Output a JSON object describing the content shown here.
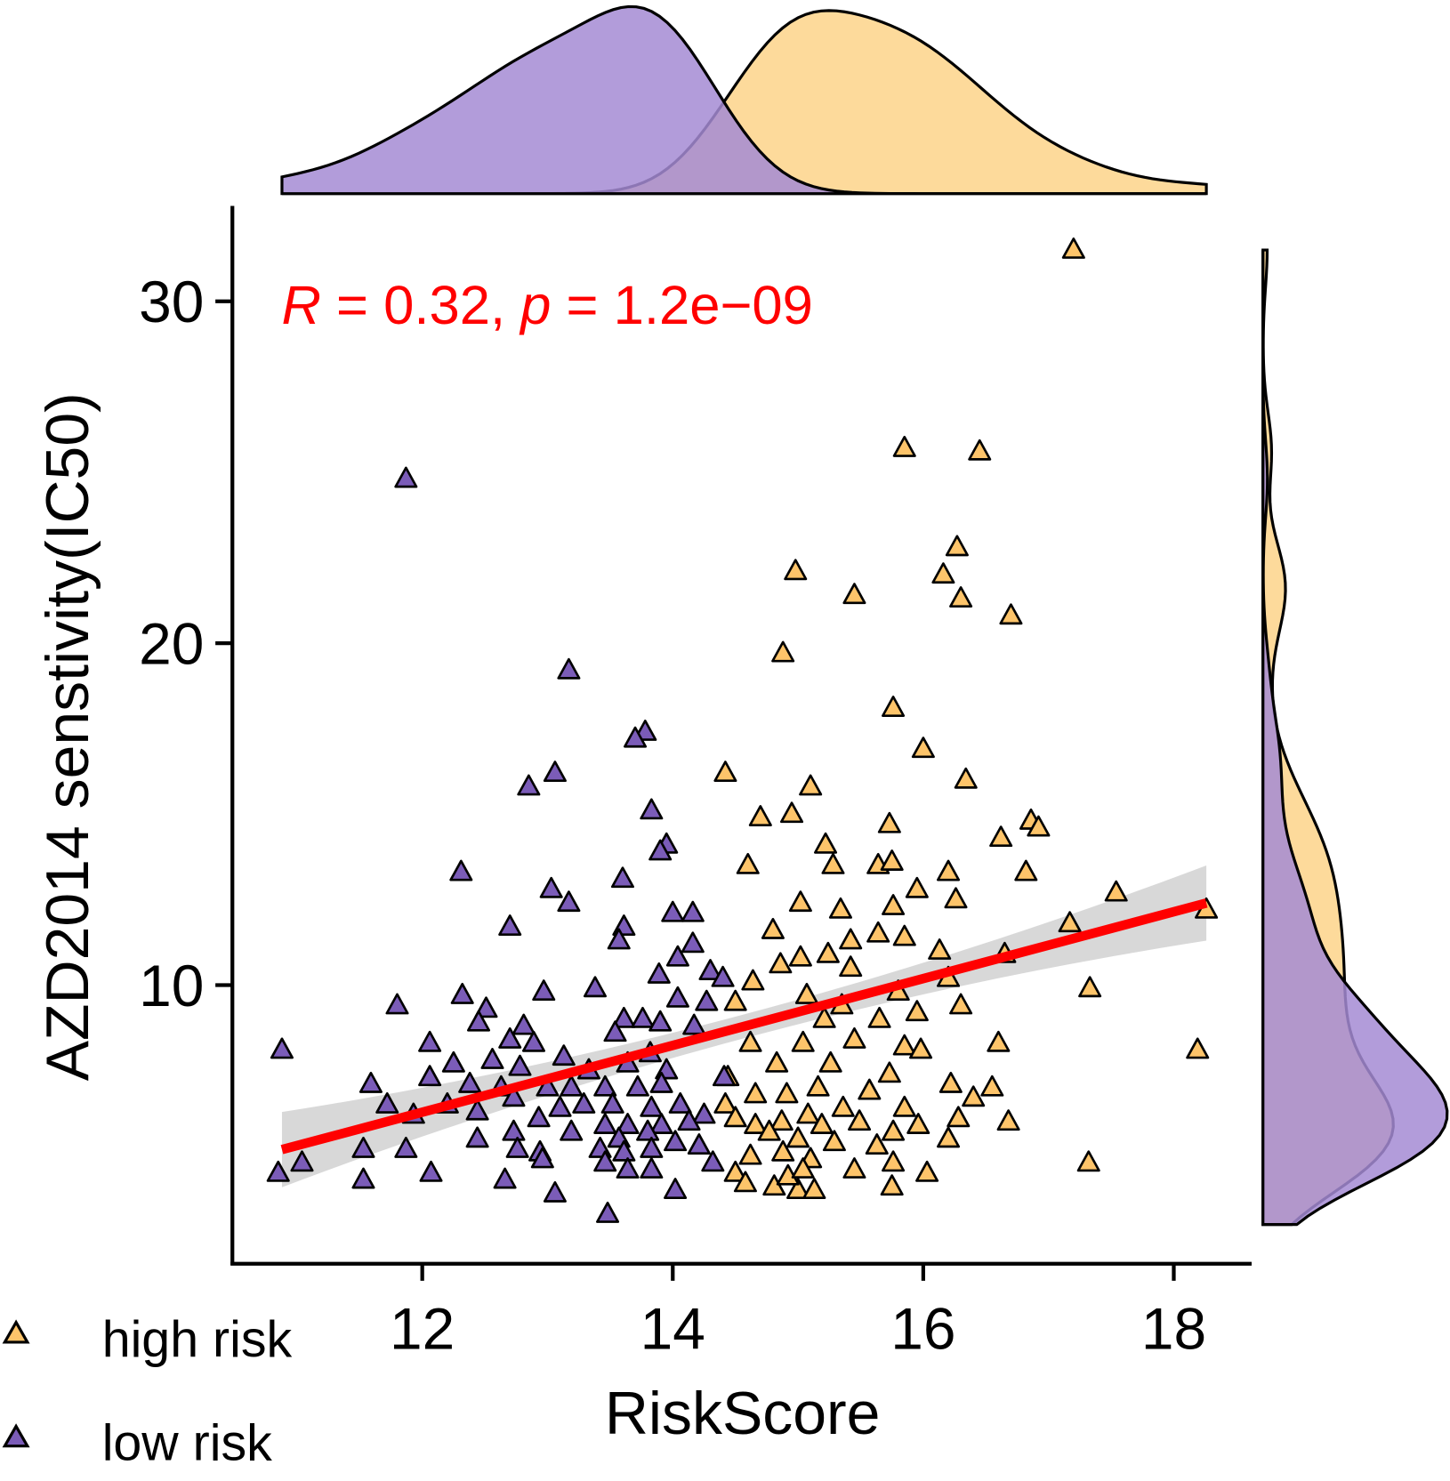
{
  "chart_data": {
    "type": "scatter",
    "title": "",
    "xlabel": "RiskScore",
    "ylabel": "AZD2014 senstivity(IC50)",
    "xlim": [
      10.6,
      18.65
    ],
    "ylim": [
      2.2,
      32.8
    ],
    "xticks": [
      12,
      14,
      16,
      18
    ],
    "yticks": [
      10,
      20,
      30
    ],
    "annotation": {
      "R_label": "R",
      "R_text": " = 0.32, ",
      "p_label": "p",
      "p_text": " = 1.2e−09",
      "color": "#FF0000"
    },
    "regression": {
      "slope": 0.977,
      "intercept": -5.44,
      "x_range": [
        10.88,
        18.26
      ],
      "ci_halfwidth_ends": 1.1,
      "ci_halfwidth_mid": 0.35,
      "color": "#FF0000",
      "band_color": "#BEBEBE"
    },
    "legend": {
      "placement": "bottom-left",
      "items": [
        {
          "name": "high risk",
          "color": "#FDC46A"
        },
        {
          "name": "low risk",
          "color": "#7B5CB8"
        }
      ]
    },
    "density_colors": {
      "high risk": "#FDD38A",
      "low risk": "#A58BD3"
    },
    "series": [
      {
        "name": "high risk",
        "color": "#FDC46A",
        "points": [
          [
            17.2,
            31.5
          ],
          [
            15.85,
            25.7
          ],
          [
            16.45,
            25.6
          ],
          [
            16.27,
            22.8
          ],
          [
            14.98,
            22.1
          ],
          [
            15.45,
            21.4
          ],
          [
            16.16,
            22.0
          ],
          [
            16.3,
            21.3
          ],
          [
            16.7,
            20.8
          ],
          [
            14.88,
            19.7
          ],
          [
            15.76,
            18.1
          ],
          [
            16.0,
            16.9
          ],
          [
            14.42,
            16.2
          ],
          [
            15.1,
            15.8
          ],
          [
            16.34,
            16.0
          ],
          [
            14.7,
            14.9
          ],
          [
            14.95,
            15.0
          ],
          [
            15.73,
            14.7
          ],
          [
            16.62,
            14.3
          ],
          [
            16.86,
            14.8
          ],
          [
            16.92,
            14.6
          ],
          [
            15.22,
            14.1
          ],
          [
            14.6,
            13.5
          ],
          [
            15.28,
            13.5
          ],
          [
            15.64,
            13.5
          ],
          [
            15.75,
            13.6
          ],
          [
            16.2,
            13.3
          ],
          [
            16.82,
            13.3
          ],
          [
            17.54,
            12.7
          ],
          [
            15.95,
            12.8
          ],
          [
            15.02,
            12.4
          ],
          [
            15.34,
            12.2
          ],
          [
            15.76,
            12.3
          ],
          [
            16.26,
            12.5
          ],
          [
            17.17,
            11.8
          ],
          [
            18.26,
            12.2
          ],
          [
            14.8,
            11.6
          ],
          [
            15.64,
            11.5
          ],
          [
            15.85,
            11.4
          ],
          [
            15.42,
            11.3
          ],
          [
            16.13,
            11.0
          ],
          [
            15.02,
            10.8
          ],
          [
            15.24,
            10.9
          ],
          [
            16.65,
            10.9
          ],
          [
            14.86,
            10.6
          ],
          [
            15.42,
            10.5
          ],
          [
            16.2,
            10.2
          ],
          [
            14.64,
            10.1
          ],
          [
            17.33,
            9.9
          ],
          [
            15.07,
            9.7
          ],
          [
            15.8,
            9.8
          ],
          [
            16.3,
            9.4
          ],
          [
            14.5,
            9.5
          ],
          [
            15.35,
            9.4
          ],
          [
            15.95,
            9.2
          ],
          [
            15.21,
            9.0
          ],
          [
            15.65,
            9.0
          ],
          [
            14.62,
            8.3
          ],
          [
            15.04,
            8.3
          ],
          [
            15.45,
            8.4
          ],
          [
            16.6,
            8.3
          ],
          [
            18.19,
            8.1
          ],
          [
            15.85,
            8.2
          ],
          [
            14.83,
            7.7
          ],
          [
            15.26,
            7.7
          ],
          [
            15.98,
            8.1
          ],
          [
            14.44,
            7.3
          ],
          [
            15.16,
            7.0
          ],
          [
            15.73,
            7.4
          ],
          [
            16.22,
            7.1
          ],
          [
            16.55,
            7.0
          ],
          [
            14.66,
            6.8
          ],
          [
            14.91,
            6.8
          ],
          [
            15.57,
            6.9
          ],
          [
            16.4,
            6.7
          ],
          [
            14.42,
            6.5
          ],
          [
            15.08,
            6.2
          ],
          [
            15.36,
            6.4
          ],
          [
            15.85,
            6.4
          ],
          [
            16.28,
            6.1
          ],
          [
            16.68,
            6.0
          ],
          [
            14.5,
            6.1
          ],
          [
            14.66,
            5.9
          ],
          [
            14.87,
            6.0
          ],
          [
            15.19,
            5.9
          ],
          [
            15.49,
            6.0
          ],
          [
            15.76,
            5.7
          ],
          [
            15.96,
            5.9
          ],
          [
            14.77,
            5.7
          ],
          [
            15.0,
            5.5
          ],
          [
            15.29,
            5.4
          ],
          [
            16.2,
            5.5
          ],
          [
            15.63,
            5.3
          ],
          [
            14.62,
            5.0
          ],
          [
            14.88,
            5.1
          ],
          [
            15.1,
            4.9
          ],
          [
            15.76,
            4.8
          ],
          [
            17.32,
            4.8
          ],
          [
            15.45,
            4.6
          ],
          [
            14.5,
            4.5
          ],
          [
            16.03,
            4.5
          ],
          [
            14.58,
            4.2
          ],
          [
            14.81,
            4.1
          ],
          [
            15.0,
            4.0
          ],
          [
            15.13,
            4.0
          ],
          [
            15.75,
            4.1
          ],
          [
            14.92,
            4.4
          ],
          [
            15.04,
            4.6
          ]
        ]
      },
      {
        "name": "low risk",
        "color": "#7B5CB8",
        "points": [
          [
            11.87,
            24.8
          ],
          [
            13.17,
            19.2
          ],
          [
            13.78,
            17.4
          ],
          [
            13.7,
            17.2
          ],
          [
            13.06,
            16.2
          ],
          [
            12.85,
            15.8
          ],
          [
            13.83,
            15.1
          ],
          [
            13.95,
            14.1
          ],
          [
            13.9,
            13.9
          ],
          [
            12.31,
            13.3
          ],
          [
            13.6,
            13.1
          ],
          [
            13.03,
            12.8
          ],
          [
            13.17,
            12.4
          ],
          [
            14.0,
            12.1
          ],
          [
            14.16,
            12.1
          ],
          [
            12.7,
            11.7
          ],
          [
            13.61,
            11.7
          ],
          [
            13.57,
            11.3
          ],
          [
            14.16,
            11.2
          ],
          [
            14.04,
            10.8
          ],
          [
            13.89,
            10.3
          ],
          [
            14.3,
            10.4
          ],
          [
            14.4,
            10.2
          ],
          [
            13.38,
            9.9
          ],
          [
            12.97,
            9.8
          ],
          [
            12.32,
            9.7
          ],
          [
            11.8,
            9.4
          ],
          [
            12.51,
            9.3
          ],
          [
            14.04,
            9.6
          ],
          [
            14.27,
            9.5
          ],
          [
            13.61,
            9.0
          ],
          [
            13.76,
            9.0
          ],
          [
            13.9,
            8.9
          ],
          [
            12.45,
            8.9
          ],
          [
            12.81,
            8.8
          ],
          [
            14.17,
            8.8
          ],
          [
            13.54,
            8.6
          ],
          [
            12.7,
            8.4
          ],
          [
            12.89,
            8.3
          ],
          [
            12.06,
            8.3
          ],
          [
            10.88,
            8.1
          ],
          [
            13.82,
            8.0
          ],
          [
            13.13,
            7.9
          ],
          [
            12.25,
            7.7
          ],
          [
            12.56,
            7.8
          ],
          [
            12.78,
            7.6
          ],
          [
            13.33,
            7.5
          ],
          [
            13.64,
            7.7
          ],
          [
            13.95,
            7.5
          ],
          [
            11.59,
            7.1
          ],
          [
            12.06,
            7.3
          ],
          [
            12.38,
            7.1
          ],
          [
            12.63,
            7.0
          ],
          [
            13.0,
            7.0
          ],
          [
            13.19,
            7.0
          ],
          [
            13.46,
            7.0
          ],
          [
            13.72,
            7.0
          ],
          [
            13.91,
            7.1
          ],
          [
            14.41,
            7.3
          ],
          [
            11.72,
            6.5
          ],
          [
            12.2,
            6.5
          ],
          [
            12.73,
            6.7
          ],
          [
            13.1,
            6.4
          ],
          [
            13.29,
            6.5
          ],
          [
            13.52,
            6.5
          ],
          [
            13.83,
            6.4
          ],
          [
            14.06,
            6.5
          ],
          [
            14.25,
            6.2
          ],
          [
            11.93,
            6.2
          ],
          [
            12.44,
            6.3
          ],
          [
            12.93,
            6.1
          ],
          [
            13.46,
            5.9
          ],
          [
            13.64,
            5.9
          ],
          [
            13.91,
            5.9
          ],
          [
            14.13,
            6.0
          ],
          [
            12.73,
            5.7
          ],
          [
            12.44,
            5.5
          ],
          [
            13.19,
            5.7
          ],
          [
            13.57,
            5.5
          ],
          [
            13.8,
            5.7
          ],
          [
            14.02,
            5.4
          ],
          [
            11.53,
            5.2
          ],
          [
            11.87,
            5.2
          ],
          [
            12.76,
            5.2
          ],
          [
            12.94,
            5.1
          ],
          [
            13.42,
            5.2
          ],
          [
            13.61,
            5.1
          ],
          [
            13.83,
            5.2
          ],
          [
            14.21,
            5.3
          ],
          [
            11.04,
            4.8
          ],
          [
            12.96,
            4.9
          ],
          [
            13.46,
            4.8
          ],
          [
            14.32,
            4.8
          ],
          [
            10.85,
            4.5
          ],
          [
            12.07,
            4.5
          ],
          [
            13.64,
            4.6
          ],
          [
            13.83,
            4.6
          ],
          [
            11.53,
            4.3
          ],
          [
            12.66,
            4.3
          ],
          [
            14.02,
            4.0
          ],
          [
            13.06,
            3.9
          ],
          [
            13.48,
            3.3
          ]
        ]
      }
    ]
  }
}
